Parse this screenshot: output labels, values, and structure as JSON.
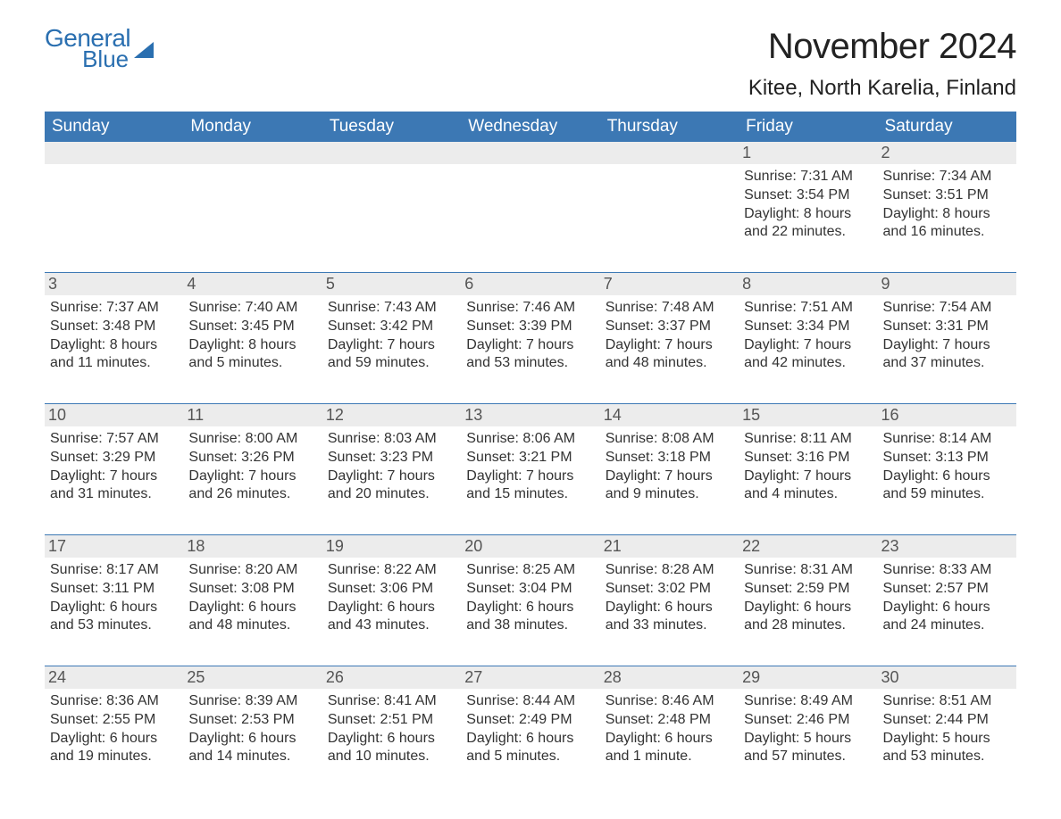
{
  "logo": {
    "general": "General",
    "blue": "Blue"
  },
  "title": "November 2024",
  "location": "Kitee, North Karelia, Finland",
  "colors": {
    "brand": "#2a6fb0",
    "header_bg": "#3c78b4",
    "header_text": "#ffffff",
    "day_band_bg": "#ececec",
    "text": "#333333",
    "background": "#ffffff"
  },
  "dow": [
    "Sunday",
    "Monday",
    "Tuesday",
    "Wednesday",
    "Thursday",
    "Friday",
    "Saturday"
  ],
  "weeks": [
    [
      null,
      null,
      null,
      null,
      null,
      {
        "n": "1",
        "sunrise": "7:31 AM",
        "sunset": "3:54 PM",
        "daylight": "8 hours and 22 minutes."
      },
      {
        "n": "2",
        "sunrise": "7:34 AM",
        "sunset": "3:51 PM",
        "daylight": "8 hours and 16 minutes."
      }
    ],
    [
      {
        "n": "3",
        "sunrise": "7:37 AM",
        "sunset": "3:48 PM",
        "daylight": "8 hours and 11 minutes."
      },
      {
        "n": "4",
        "sunrise": "7:40 AM",
        "sunset": "3:45 PM",
        "daylight": "8 hours and 5 minutes."
      },
      {
        "n": "5",
        "sunrise": "7:43 AM",
        "sunset": "3:42 PM",
        "daylight": "7 hours and 59 minutes."
      },
      {
        "n": "6",
        "sunrise": "7:46 AM",
        "sunset": "3:39 PM",
        "daylight": "7 hours and 53 minutes."
      },
      {
        "n": "7",
        "sunrise": "7:48 AM",
        "sunset": "3:37 PM",
        "daylight": "7 hours and 48 minutes."
      },
      {
        "n": "8",
        "sunrise": "7:51 AM",
        "sunset": "3:34 PM",
        "daylight": "7 hours and 42 minutes."
      },
      {
        "n": "9",
        "sunrise": "7:54 AM",
        "sunset": "3:31 PM",
        "daylight": "7 hours and 37 minutes."
      }
    ],
    [
      {
        "n": "10",
        "sunrise": "7:57 AM",
        "sunset": "3:29 PM",
        "daylight": "7 hours and 31 minutes."
      },
      {
        "n": "11",
        "sunrise": "8:00 AM",
        "sunset": "3:26 PM",
        "daylight": "7 hours and 26 minutes."
      },
      {
        "n": "12",
        "sunrise": "8:03 AM",
        "sunset": "3:23 PM",
        "daylight": "7 hours and 20 minutes."
      },
      {
        "n": "13",
        "sunrise": "8:06 AM",
        "sunset": "3:21 PM",
        "daylight": "7 hours and 15 minutes."
      },
      {
        "n": "14",
        "sunrise": "8:08 AM",
        "sunset": "3:18 PM",
        "daylight": "7 hours and 9 minutes."
      },
      {
        "n": "15",
        "sunrise": "8:11 AM",
        "sunset": "3:16 PM",
        "daylight": "7 hours and 4 minutes."
      },
      {
        "n": "16",
        "sunrise": "8:14 AM",
        "sunset": "3:13 PM",
        "daylight": "6 hours and 59 minutes."
      }
    ],
    [
      {
        "n": "17",
        "sunrise": "8:17 AM",
        "sunset": "3:11 PM",
        "daylight": "6 hours and 53 minutes."
      },
      {
        "n": "18",
        "sunrise": "8:20 AM",
        "sunset": "3:08 PM",
        "daylight": "6 hours and 48 minutes."
      },
      {
        "n": "19",
        "sunrise": "8:22 AM",
        "sunset": "3:06 PM",
        "daylight": "6 hours and 43 minutes."
      },
      {
        "n": "20",
        "sunrise": "8:25 AM",
        "sunset": "3:04 PM",
        "daylight": "6 hours and 38 minutes."
      },
      {
        "n": "21",
        "sunrise": "8:28 AM",
        "sunset": "3:02 PM",
        "daylight": "6 hours and 33 minutes."
      },
      {
        "n": "22",
        "sunrise": "8:31 AM",
        "sunset": "2:59 PM",
        "daylight": "6 hours and 28 minutes."
      },
      {
        "n": "23",
        "sunrise": "8:33 AM",
        "sunset": "2:57 PM",
        "daylight": "6 hours and 24 minutes."
      }
    ],
    [
      {
        "n": "24",
        "sunrise": "8:36 AM",
        "sunset": "2:55 PM",
        "daylight": "6 hours and 19 minutes."
      },
      {
        "n": "25",
        "sunrise": "8:39 AM",
        "sunset": "2:53 PM",
        "daylight": "6 hours and 14 minutes."
      },
      {
        "n": "26",
        "sunrise": "8:41 AM",
        "sunset": "2:51 PM",
        "daylight": "6 hours and 10 minutes."
      },
      {
        "n": "27",
        "sunrise": "8:44 AM",
        "sunset": "2:49 PM",
        "daylight": "6 hours and 5 minutes."
      },
      {
        "n": "28",
        "sunrise": "8:46 AM",
        "sunset": "2:48 PM",
        "daylight": "6 hours and 1 minute."
      },
      {
        "n": "29",
        "sunrise": "8:49 AM",
        "sunset": "2:46 PM",
        "daylight": "5 hours and 57 minutes."
      },
      {
        "n": "30",
        "sunrise": "8:51 AM",
        "sunset": "2:44 PM",
        "daylight": "5 hours and 53 minutes."
      }
    ]
  ],
  "labels": {
    "sunrise": "Sunrise: ",
    "sunset": "Sunset: ",
    "daylight": "Daylight: "
  }
}
